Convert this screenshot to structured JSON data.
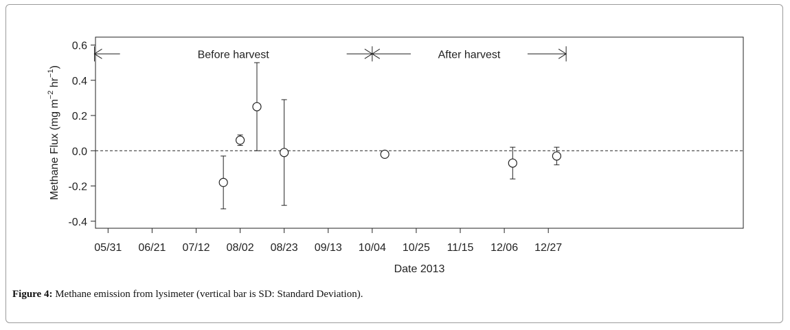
{
  "chart_data": {
    "type": "scatter",
    "title": "",
    "xlabel": "Date 2013",
    "ylabel_main": "Methane Flux (mg m",
    "ylabel_sup1": "−2",
    "ylabel_mid": " hr",
    "ylabel_sup2": "−1",
    "ylabel_end": ")",
    "xlim": [
      -6,
      303
    ],
    "ylim": [
      -0.44,
      0.645
    ],
    "x_ticks": [
      {
        "day": 0,
        "label": "05/31"
      },
      {
        "day": 21,
        "label": "06/21"
      },
      {
        "day": 42,
        "label": "07/12"
      },
      {
        "day": 63,
        "label": "08/02"
      },
      {
        "day": 84,
        "label": "08/23"
      },
      {
        "day": 105,
        "label": "09/13"
      },
      {
        "day": 126,
        "label": "10/04"
      },
      {
        "day": 147,
        "label": "10/25"
      },
      {
        "day": 168,
        "label": "11/15"
      },
      {
        "day": 189,
        "label": "12/06"
      },
      {
        "day": 210,
        "label": "12/27"
      }
    ],
    "y_ticks": [
      {
        "value": -0.4,
        "label": "-0.4"
      },
      {
        "value": -0.2,
        "label": "-0.2"
      },
      {
        "value": 0.0,
        "label": "0.0"
      },
      {
        "value": 0.2,
        "label": "0.2"
      },
      {
        "value": 0.4,
        "label": "0.4"
      },
      {
        "value": 0.6,
        "label": "0.6"
      }
    ],
    "reference_line": {
      "y": 0.0,
      "style": "dashed"
    },
    "points": [
      {
        "day": 55,
        "mean": -0.18,
        "sd_low": -0.33,
        "sd_high": -0.03
      },
      {
        "day": 63,
        "mean": 0.06,
        "sd_low": 0.03,
        "sd_high": 0.09
      },
      {
        "day": 71,
        "mean": 0.25,
        "sd_low": 0.0,
        "sd_high": 0.5
      },
      {
        "day": 84,
        "mean": -0.01,
        "sd_low": -0.31,
        "sd_high": 0.29
      },
      {
        "day": 132,
        "mean": -0.02,
        "sd_low": -0.03,
        "sd_high": -0.01
      },
      {
        "day": 193,
        "mean": -0.07,
        "sd_low": -0.16,
        "sd_high": 0.02
      },
      {
        "day": 214,
        "mean": -0.03,
        "sd_low": -0.08,
        "sd_high": 0.02
      }
    ],
    "annotations": {
      "before_label": "Before harvest",
      "after_label": "After harvest",
      "arrow_y": 0.55,
      "before_range": [
        -6.5,
        126
      ],
      "after_range": [
        126,
        218.5
      ]
    }
  },
  "caption": {
    "label": "Figure 4:",
    "text": " Methane emission from lysimeter (vertical bar is SD: Standard Deviation)."
  }
}
